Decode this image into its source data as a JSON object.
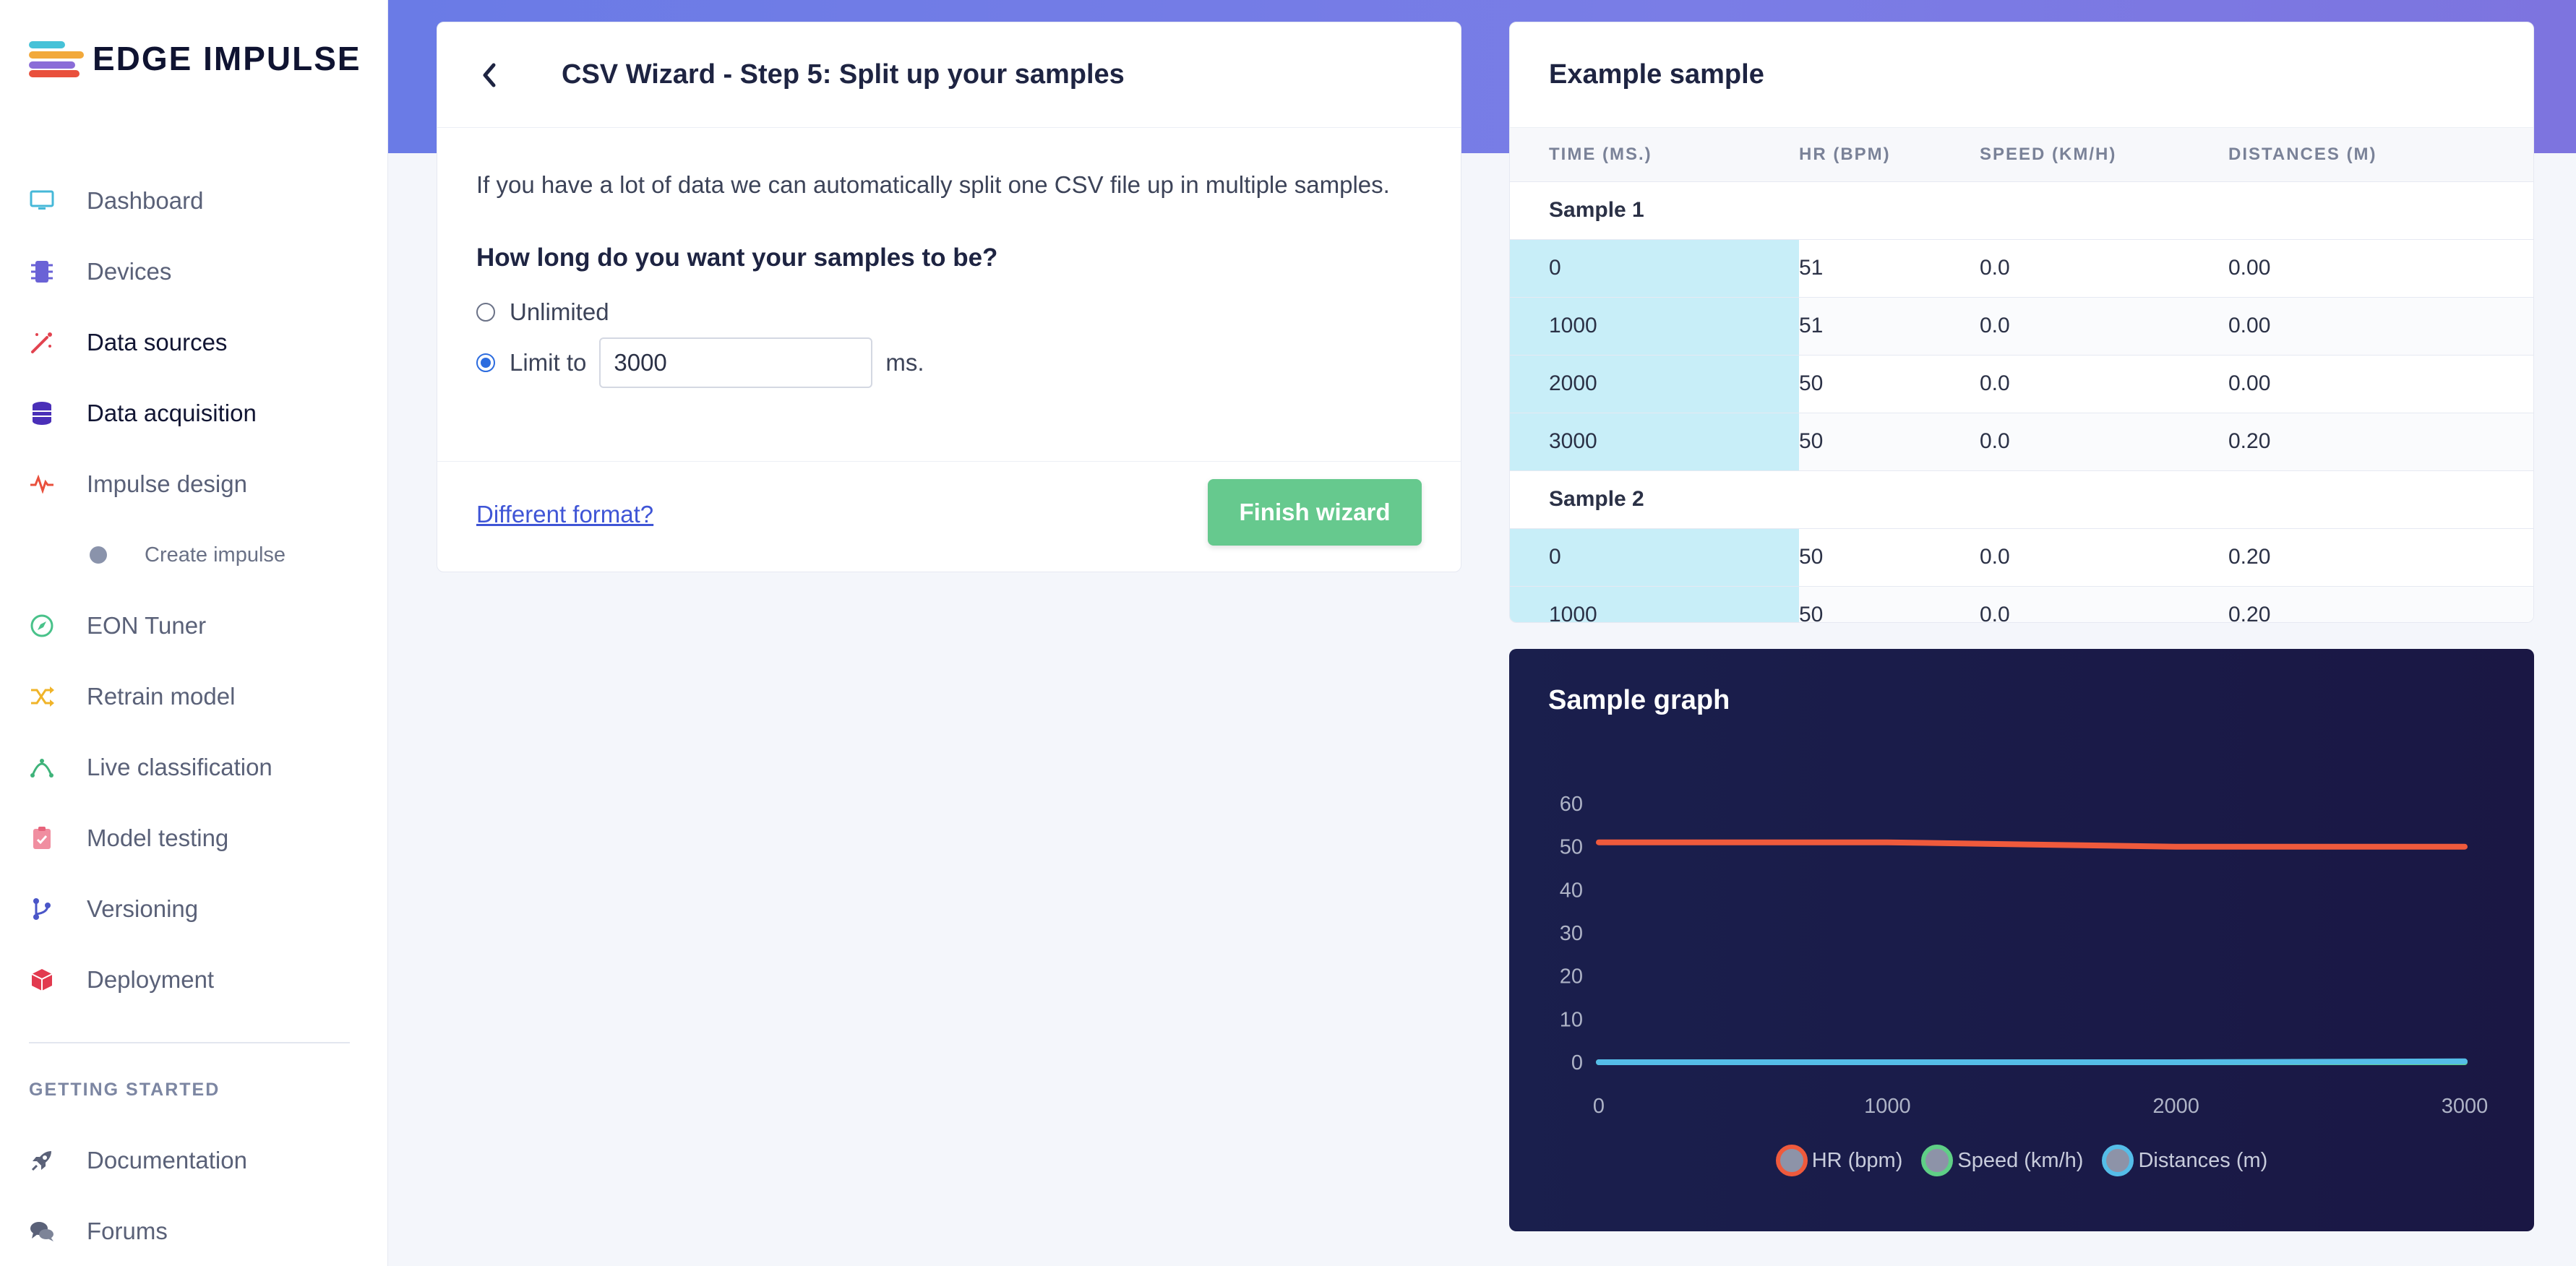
{
  "brand": {
    "name": "EDGE IMPULSE"
  },
  "nav": {
    "items": [
      {
        "label": "Dashboard",
        "icon": "monitor-icon"
      },
      {
        "label": "Devices",
        "icon": "chip-icon"
      },
      {
        "label": "Data sources",
        "icon": "wand-icon"
      },
      {
        "label": "Data acquisition",
        "icon": "database-icon",
        "active": true
      },
      {
        "label": "Impulse design",
        "icon": "pulse-icon"
      },
      {
        "label": "Create impulse",
        "icon": "dot-icon",
        "sub": true
      },
      {
        "label": "EON Tuner",
        "icon": "compass-icon"
      },
      {
        "label": "Retrain model",
        "icon": "shuffle-icon"
      },
      {
        "label": "Live classification",
        "icon": "branch-icon"
      },
      {
        "label": "Model testing",
        "icon": "clipboard-icon"
      },
      {
        "label": "Versioning",
        "icon": "git-icon"
      },
      {
        "label": "Deployment",
        "icon": "box-icon"
      }
    ],
    "section_title": "GETTING STARTED",
    "section_items": [
      {
        "label": "Documentation",
        "icon": "rocket-icon"
      },
      {
        "label": "Forums",
        "icon": "chat-icon"
      }
    ]
  },
  "wizard": {
    "title": "CSV Wizard - Step 5: Split up your samples",
    "intro": "If you have a lot of data we can automatically split one CSV file up in multiple samples.",
    "question": "How long do you want your samples to be?",
    "option_unlimited": "Unlimited",
    "option_limit": "Limit to",
    "limit_value": "3000",
    "limit_unit": "ms.",
    "selected_option": "limit",
    "different_format": "Different format?",
    "finish_label": "Finish wizard"
  },
  "sample": {
    "title": "Example sample",
    "columns": [
      "TIME (MS.)",
      "HR (BPM)",
      "SPEED (KM/H)",
      "DISTANCES (M)"
    ],
    "groups": [
      {
        "name": "Sample 1",
        "rows": [
          [
            "0",
            "51",
            "0.0",
            "0.00"
          ],
          [
            "1000",
            "51",
            "0.0",
            "0.00"
          ],
          [
            "2000",
            "50",
            "0.0",
            "0.00"
          ],
          [
            "3000",
            "50",
            "0.0",
            "0.20"
          ]
        ]
      },
      {
        "name": "Sample 2",
        "rows": [
          [
            "0",
            "50",
            "0.0",
            "0.20"
          ],
          [
            "1000",
            "50",
            "0.0",
            "0.20"
          ]
        ]
      }
    ]
  },
  "graph": {
    "title": "Sample graph"
  },
  "chart_data": {
    "type": "line",
    "x": [
      0,
      1000,
      2000,
      3000
    ],
    "xticks": [
      "0",
      "1000",
      "2000",
      "3000"
    ],
    "yticks": [
      "60",
      "50",
      "40",
      "30",
      "20",
      "10",
      "0"
    ],
    "ylim": [
      0,
      60
    ],
    "xlim": [
      0,
      3000
    ],
    "grid": false,
    "legend_position": "bottom-center",
    "series": [
      {
        "name": "HR (bpm)",
        "values": [
          51,
          51,
          50,
          50
        ],
        "color": "#ef5a3c"
      },
      {
        "name": "Speed (km/h)",
        "values": [
          0.0,
          0.0,
          0.0,
          0.0
        ],
        "color": "#5fcf86"
      },
      {
        "name": "Distances (m)",
        "values": [
          0.0,
          0.0,
          0.0,
          0.2
        ],
        "color": "#55bde8"
      }
    ]
  }
}
